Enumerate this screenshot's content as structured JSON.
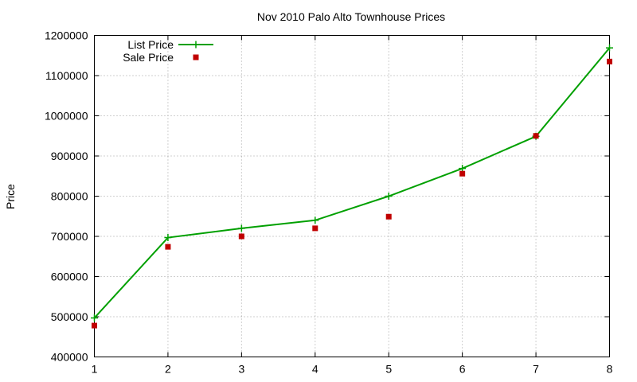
{
  "chart_data": {
    "type": "line",
    "title": "Nov 2010 Palo Alto Townhouse Prices",
    "xlabel": "",
    "ylabel": "Price",
    "xlim": [
      1,
      8
    ],
    "ylim": [
      400000,
      1200000
    ],
    "xticks": [
      1,
      2,
      3,
      4,
      5,
      6,
      7,
      8
    ],
    "yticks": [
      400000,
      500000,
      600000,
      700000,
      800000,
      900000,
      1000000,
      1100000,
      1200000
    ],
    "grid": true,
    "legend_position": "top-left",
    "series": [
      {
        "name": "List Price",
        "style": "line-with-plus-markers",
        "color": "#00a000",
        "x": [
          1,
          2,
          3,
          4,
          5,
          6,
          7,
          8
        ],
        "y": [
          497000,
          697000,
          720000,
          740000,
          800000,
          869000,
          949000,
          1169000
        ]
      },
      {
        "name": "Sale Price",
        "style": "square-markers",
        "color": "#c00000",
        "x": [
          1,
          2,
          3,
          4,
          5,
          6,
          7,
          8
        ],
        "y": [
          478000,
          674000,
          700000,
          720000,
          749000,
          856000,
          950000,
          1135000
        ]
      }
    ]
  }
}
